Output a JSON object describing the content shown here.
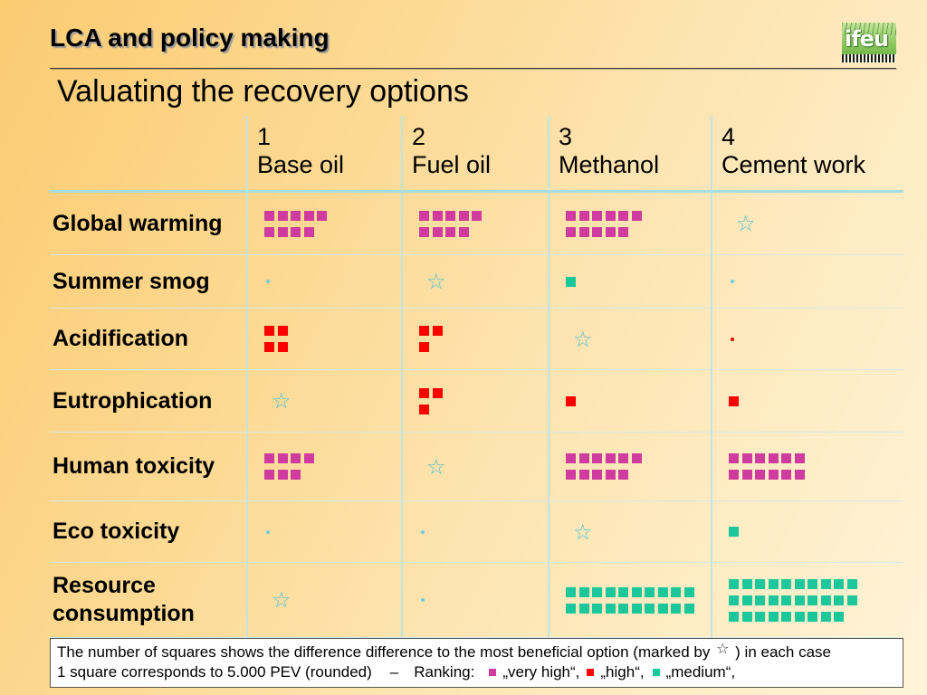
{
  "header": {
    "title": "LCA and policy making",
    "logo_text": "ifeu"
  },
  "subtitle": "Valuating the recovery options",
  "colors": {
    "very_high": "#cf3b9f",
    "high": "#ff0000",
    "medium": "#1cc89b",
    "star": "#4fc1d3",
    "dot": "#6ccfda",
    "grid_line": "#d3eae6",
    "grid_line_vertical": "#c3e3e0",
    "header_rule": "#a6dee0"
  },
  "table": {
    "columns": [
      {
        "number": "1",
        "name": "Base oil"
      },
      {
        "number": "2",
        "name": "Fuel oil"
      },
      {
        "number": "3",
        "name": "Methanol"
      },
      {
        "number": "4",
        "name": "Cement work"
      }
    ],
    "rows": [
      {
        "label": "Global warming",
        "cells": [
          {
            "squares": [
              5,
              4
            ],
            "color": "#cf3b9f"
          },
          {
            "squares": [
              5,
              4
            ],
            "color": "#cf3b9f"
          },
          {
            "squares": [
              6,
              5
            ],
            "color": "#cf3b9f"
          },
          {
            "icon": "star-icon"
          }
        ]
      },
      {
        "label": "Summer smog",
        "cells": [
          {
            "icon": "dot-icon",
            "color": "#6ccfda"
          },
          {
            "icon": "star-icon"
          },
          {
            "squares": [
              1
            ],
            "color": "#1cc89b"
          },
          {
            "icon": "dot-icon",
            "color": "#6ccfda"
          }
        ]
      },
      {
        "label": "Acidification",
        "cells": [
          {
            "squares": [
              2,
              2
            ],
            "color": "#ff0000"
          },
          {
            "squares": [
              2,
              1
            ],
            "color": "#ff0000"
          },
          {
            "icon": "star-icon"
          },
          {
            "icon": "dot-icon",
            "color": "#ff0000"
          }
        ]
      },
      {
        "label": "Eutrophication",
        "cells": [
          {
            "icon": "star-icon"
          },
          {
            "squares": [
              2,
              1
            ],
            "color": "#ff0000"
          },
          {
            "squares": [
              1
            ],
            "color": "#ff0000"
          },
          {
            "squares": [
              1
            ],
            "color": "#ff0000"
          }
        ]
      },
      {
        "label": "Human toxicity",
        "cells": [
          {
            "squares": [
              4,
              3
            ],
            "color": "#cf3b9f"
          },
          {
            "icon": "star-icon"
          },
          {
            "squares": [
              6,
              5
            ],
            "color": "#cf3b9f"
          },
          {
            "squares": [
              6,
              6
            ],
            "color": "#cf3b9f"
          }
        ]
      },
      {
        "label": "Eco toxicity",
        "cells": [
          {
            "icon": "dot-icon",
            "color": "#6ccfda"
          },
          {
            "icon": "dot-icon",
            "color": "#6ccfda"
          },
          {
            "icon": "star-icon"
          },
          {
            "squares": [
              1
            ],
            "color": "#1cc89b"
          }
        ]
      },
      {
        "label": "Resource consumption",
        "cells": [
          {
            "icon": "star-icon"
          },
          {
            "icon": "dot-icon",
            "color": "#6ccfda"
          },
          {
            "squares": [
              10,
              10
            ],
            "color": "#1cc89b"
          },
          {
            "squares": [
              10,
              10,
              9
            ],
            "color": "#1cc89b"
          }
        ]
      }
    ]
  },
  "legend": {
    "line1_before": "The number of squares shows the difference difference to the most beneficial option (marked by",
    "marker_icon": "star-icon",
    "line1_after": ") in each case",
    "line2_text": "1 square corresponds to 5.000 PEV (rounded)",
    "dash": "–",
    "ranking_label": "Ranking:",
    "items": [
      {
        "color": "#cf3b9f",
        "label": "„very high“,"
      },
      {
        "color": "#ff0000",
        "label": "„high“,"
      },
      {
        "color": "#1cc89b",
        "label": "„medium“,"
      }
    ]
  }
}
